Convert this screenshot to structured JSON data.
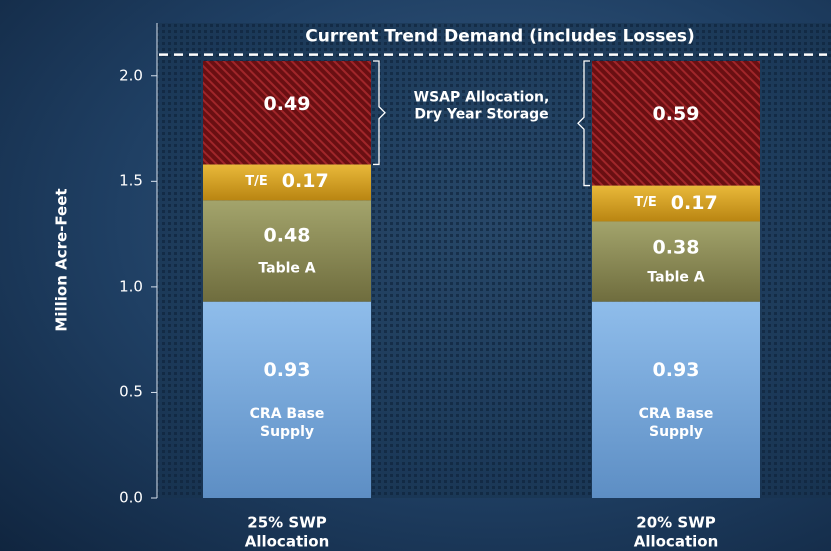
{
  "chart_data": {
    "type": "stacked_bar",
    "y_axis_label": "Million Acre-Feet",
    "categories": [
      "25% SWP Allocation",
      "20% SWP Allocation"
    ],
    "series": [
      {
        "name": "CRA Base Supply",
        "color": "#6d9fd6",
        "values": [
          0.93,
          0.93
        ]
      },
      {
        "name": "Table A",
        "color": "#8c8a55",
        "values": [
          0.48,
          0.38
        ]
      },
      {
        "name": "T/E",
        "color": "#d6a224",
        "values": [
          0.17,
          0.17
        ]
      },
      {
        "name": "WSAP Allocation, Dry Year Storage",
        "color": "#7a1414",
        "values": [
          0.49,
          0.59
        ]
      }
    ],
    "demand_line": {
      "label": "Current Trend Demand (includes Losses)",
      "value": 2.1
    },
    "ylim": [
      0,
      2.25
    ],
    "yticks": [
      {
        "value": 0,
        "label": "0.0"
      },
      0.5,
      {
        "value": 1,
        "label": "1.0"
      },
      1.5,
      {
        "value": 2,
        "label": "2.0"
      }
    ]
  }
}
